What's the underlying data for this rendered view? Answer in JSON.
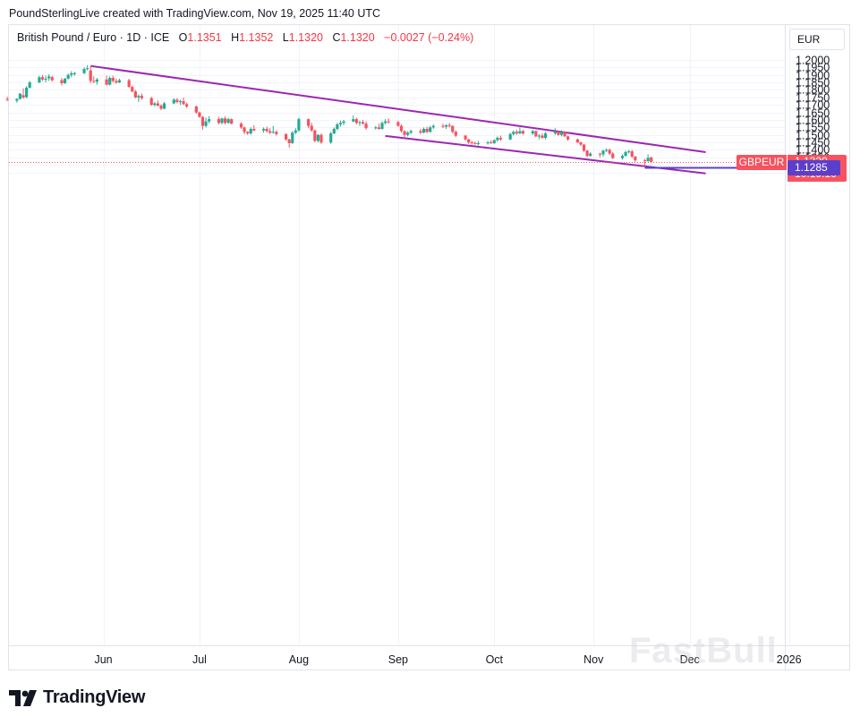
{
  "header": {
    "credit": "PoundSterlingLive created with TradingView.com, Nov 19, 2025 11:40 UTC"
  },
  "legend": {
    "title": "British Pound / Euro · 1D · ICE",
    "o_label": "O",
    "o_value": "1.1351",
    "h_label": "H",
    "h_value": "1.1352",
    "l_label": "L",
    "l_value": "1.1320",
    "c_label": "C",
    "c_value": "1.1320",
    "change": "−0.0027 (−0.24%)"
  },
  "currency_button": "EUR",
  "price_tags": {
    "symbol": "GBPEUR",
    "last": "1.1320",
    "countdown": "10:19:16",
    "level": "1.1285"
  },
  "brand": "TradingView",
  "watermark": "FastBull",
  "colors": {
    "up": "#22ab94",
    "down": "#f7525f",
    "trendline": "#9c27b0",
    "level": "#5b3fcc",
    "grid": "#f0f3fa"
  },
  "chart_data": {
    "type": "candlestick",
    "symbol": "GBPEUR",
    "ylim": [
      1.121,
      1.2045
    ],
    "y_ticks": [
      "1.2000",
      "1.1950",
      "1.1900",
      "1.1850",
      "1.1800",
      "1.1750",
      "1.1700",
      "1.1650",
      "1.1600",
      "1.1550",
      "1.1500",
      "1.1450",
      "1.1400",
      "1.1350",
      "1.1300",
      "1.1250"
    ],
    "x_ticks": [
      "Jun",
      "Jul",
      "Aug",
      "Sep",
      "Oct",
      "Nov",
      "Dec",
      "2026"
    ],
    "last_close": 1.132,
    "horizontal_level": 1.1285,
    "trendlines": [
      {
        "from": [
          "2025-05-28",
          1.196
        ],
        "to": [
          "2025-12-06",
          1.1385
        ]
      },
      {
        "from": [
          "2025-08-28",
          1.1493
        ],
        "to": [
          "2025-12-06",
          1.1243
        ]
      }
    ],
    "candles": [
      {
        "d": "2025-05-02",
        "o": 1.174,
        "h": 1.1755,
        "l": 1.1725,
        "c": 1.1735
      },
      {
        "d": "2025-05-05",
        "o": 1.1728,
        "h": 1.1745,
        "l": 1.1715,
        "c": 1.174
      },
      {
        "d": "2025-05-06",
        "o": 1.174,
        "h": 1.178,
        "l": 1.1735,
        "c": 1.1775
      },
      {
        "d": "2025-05-07",
        "o": 1.1765,
        "h": 1.181,
        "l": 1.174,
        "c": 1.175
      },
      {
        "d": "2025-05-08",
        "o": 1.1752,
        "h": 1.1825,
        "l": 1.1745,
        "c": 1.1815
      },
      {
        "d": "2025-05-09",
        "o": 1.1815,
        "h": 1.186,
        "l": 1.181,
        "c": 1.185
      },
      {
        "d": "2025-05-12",
        "o": 1.185,
        "h": 1.1895,
        "l": 1.1845,
        "c": 1.1885
      },
      {
        "d": "2025-05-13",
        "o": 1.1885,
        "h": 1.19,
        "l": 1.186,
        "c": 1.187
      },
      {
        "d": "2025-05-14",
        "o": 1.1868,
        "h": 1.1895,
        "l": 1.185,
        "c": 1.1875
      },
      {
        "d": "2025-05-15",
        "o": 1.1878,
        "h": 1.1905,
        "l": 1.186,
        "c": 1.189
      },
      {
        "d": "2025-05-16",
        "o": 1.1885,
        "h": 1.1895,
        "l": 1.1855,
        "c": 1.1865
      },
      {
        "d": "2025-05-19",
        "o": 1.1865,
        "h": 1.188,
        "l": 1.183,
        "c": 1.1845
      },
      {
        "d": "2025-05-20",
        "o": 1.1845,
        "h": 1.188,
        "l": 1.184,
        "c": 1.1875
      },
      {
        "d": "2025-05-21",
        "o": 1.1875,
        "h": 1.191,
        "l": 1.187,
        "c": 1.19
      },
      {
        "d": "2025-05-22",
        "o": 1.19,
        "h": 1.1925,
        "l": 1.1885,
        "c": 1.191
      },
      {
        "d": "2025-05-23",
        "o": 1.1905,
        "h": 1.192,
        "l": 1.1895,
        "c": 1.1912
      },
      {
        "d": "2025-05-26",
        "o": 1.1912,
        "h": 1.195,
        "l": 1.1905,
        "c": 1.194
      },
      {
        "d": "2025-05-27",
        "o": 1.194,
        "h": 1.1965,
        "l": 1.193,
        "c": 1.1945
      },
      {
        "d": "2025-05-28",
        "o": 1.193,
        "h": 1.1958,
        "l": 1.1845,
        "c": 1.186
      },
      {
        "d": "2025-05-29",
        "o": 1.186,
        "h": 1.189,
        "l": 1.1845,
        "c": 1.1855
      },
      {
        "d": "2025-05-30",
        "o": 1.1855,
        "h": 1.188,
        "l": 1.1835,
        "c": 1.187
      },
      {
        "d": "2025-06-02",
        "o": 1.187,
        "h": 1.1895,
        "l": 1.183,
        "c": 1.1835
      },
      {
        "d": "2025-06-03",
        "o": 1.1835,
        "h": 1.189,
        "l": 1.183,
        "c": 1.188
      },
      {
        "d": "2025-06-04",
        "o": 1.188,
        "h": 1.1895,
        "l": 1.185,
        "c": 1.186
      },
      {
        "d": "2025-06-05",
        "o": 1.186,
        "h": 1.1875,
        "l": 1.184,
        "c": 1.185
      },
      {
        "d": "2025-06-06",
        "o": 1.185,
        "h": 1.1875,
        "l": 1.1845,
        "c": 1.1865
      },
      {
        "d": "2025-06-09",
        "o": 1.1865,
        "h": 1.1875,
        "l": 1.1815,
        "c": 1.182
      },
      {
        "d": "2025-06-10",
        "o": 1.182,
        "h": 1.183,
        "l": 1.1785,
        "c": 1.179
      },
      {
        "d": "2025-06-11",
        "o": 1.179,
        "h": 1.18,
        "l": 1.1745,
        "c": 1.175
      },
      {
        "d": "2025-06-12",
        "o": 1.175,
        "h": 1.177,
        "l": 1.172,
        "c": 1.176
      },
      {
        "d": "2025-06-13",
        "o": 1.176,
        "h": 1.1775,
        "l": 1.1735,
        "c": 1.1745
      },
      {
        "d": "2025-06-16",
        "o": 1.1745,
        "h": 1.1755,
        "l": 1.1695,
        "c": 1.17
      },
      {
        "d": "2025-06-17",
        "o": 1.17,
        "h": 1.172,
        "l": 1.169,
        "c": 1.171
      },
      {
        "d": "2025-06-18",
        "o": 1.171,
        "h": 1.173,
        "l": 1.169,
        "c": 1.1695
      },
      {
        "d": "2025-06-19",
        "o": 1.1695,
        "h": 1.1705,
        "l": 1.1665,
        "c": 1.1675
      },
      {
        "d": "2025-06-20",
        "o": 1.1675,
        "h": 1.172,
        "l": 1.167,
        "c": 1.171
      },
      {
        "d": "2025-06-23",
        "o": 1.171,
        "h": 1.1745,
        "l": 1.1705,
        "c": 1.1735
      },
      {
        "d": "2025-06-24",
        "o": 1.1735,
        "h": 1.1745,
        "l": 1.171,
        "c": 1.172
      },
      {
        "d": "2025-06-25",
        "o": 1.172,
        "h": 1.1735,
        "l": 1.17,
        "c": 1.1725
      },
      {
        "d": "2025-06-26",
        "o": 1.1725,
        "h": 1.175,
        "l": 1.17,
        "c": 1.1705
      },
      {
        "d": "2025-06-27",
        "o": 1.1705,
        "h": 1.1715,
        "l": 1.168,
        "c": 1.169
      },
      {
        "d": "2025-06-30",
        "o": 1.169,
        "h": 1.1695,
        "l": 1.164,
        "c": 1.165
      },
      {
        "d": "2025-07-01",
        "o": 1.165,
        "h": 1.1655,
        "l": 1.1615,
        "c": 1.162
      },
      {
        "d": "2025-07-02",
        "o": 1.162,
        "h": 1.1625,
        "l": 1.1535,
        "c": 1.156
      },
      {
        "d": "2025-07-03",
        "o": 1.156,
        "h": 1.1615,
        "l": 1.155,
        "c": 1.159
      },
      {
        "d": "2025-07-04",
        "o": 1.159,
        "h": 1.1625,
        "l": 1.1575,
        "c": 1.1605
      },
      {
        "d": "2025-07-07",
        "o": 1.1605,
        "h": 1.162,
        "l": 1.157,
        "c": 1.158
      },
      {
        "d": "2025-07-08",
        "o": 1.158,
        "h": 1.1615,
        "l": 1.157,
        "c": 1.161
      },
      {
        "d": "2025-07-09",
        "o": 1.161,
        "h": 1.1625,
        "l": 1.157,
        "c": 1.158
      },
      {
        "d": "2025-07-10",
        "o": 1.158,
        "h": 1.1615,
        "l": 1.1575,
        "c": 1.1605
      },
      {
        "d": "2025-07-11",
        "o": 1.1605,
        "h": 1.161,
        "l": 1.157,
        "c": 1.1575
      },
      {
        "d": "2025-07-14",
        "o": 1.1575,
        "h": 1.1585,
        "l": 1.154,
        "c": 1.155
      },
      {
        "d": "2025-07-15",
        "o": 1.155,
        "h": 1.1555,
        "l": 1.1505,
        "c": 1.152
      },
      {
        "d": "2025-07-16",
        "o": 1.152,
        "h": 1.1525,
        "l": 1.15,
        "c": 1.151
      },
      {
        "d": "2025-07-17",
        "o": 1.151,
        "h": 1.155,
        "l": 1.15,
        "c": 1.154
      },
      {
        "d": "2025-07-18",
        "o": 1.154,
        "h": 1.1565,
        "l": 1.1525,
        "c": 1.153
      },
      {
        "d": "2025-07-21",
        "o": 1.153,
        "h": 1.155,
        "l": 1.1515,
        "c": 1.154
      },
      {
        "d": "2025-07-22",
        "o": 1.154,
        "h": 1.1555,
        "l": 1.1515,
        "c": 1.1525
      },
      {
        "d": "2025-07-23",
        "o": 1.1525,
        "h": 1.1545,
        "l": 1.1505,
        "c": 1.1515
      },
      {
        "d": "2025-07-24",
        "o": 1.1515,
        "h": 1.156,
        "l": 1.151,
        "c": 1.152
      },
      {
        "d": "2025-07-25",
        "o": 1.152,
        "h": 1.153,
        "l": 1.1495,
        "c": 1.1505
      },
      {
        "d": "2025-07-28",
        "o": 1.1505,
        "h": 1.151,
        "l": 1.146,
        "c": 1.147
      },
      {
        "d": "2025-07-29",
        "o": 1.147,
        "h": 1.1475,
        "l": 1.1415,
        "c": 1.1445
      },
      {
        "d": "2025-07-30",
        "o": 1.1445,
        "h": 1.1525,
        "l": 1.144,
        "c": 1.1515
      },
      {
        "d": "2025-07-31",
        "o": 1.1515,
        "h": 1.1545,
        "l": 1.1505,
        "c": 1.153
      },
      {
        "d": "2025-08-01",
        "o": 1.153,
        "h": 1.1615,
        "l": 1.152,
        "c": 1.1605
      },
      {
        "d": "2025-08-04",
        "o": 1.1605,
        "h": 1.161,
        "l": 1.1545,
        "c": 1.156
      },
      {
        "d": "2025-08-05",
        "o": 1.156,
        "h": 1.158,
        "l": 1.152,
        "c": 1.153
      },
      {
        "d": "2025-08-06",
        "o": 1.153,
        "h": 1.1535,
        "l": 1.145,
        "c": 1.146
      },
      {
        "d": "2025-08-07",
        "o": 1.146,
        "h": 1.1505,
        "l": 1.145,
        "c": 1.15
      },
      {
        "d": "2025-08-08",
        "o": 1.15,
        "h": 1.151,
        "l": 1.144,
        "c": 1.145
      },
      {
        "d": "2025-08-11",
        "o": 1.145,
        "h": 1.152,
        "l": 1.144,
        "c": 1.151
      },
      {
        "d": "2025-08-12",
        "o": 1.151,
        "h": 1.155,
        "l": 1.1505,
        "c": 1.154
      },
      {
        "d": "2025-08-13",
        "o": 1.154,
        "h": 1.158,
        "l": 1.153,
        "c": 1.157
      },
      {
        "d": "2025-08-14",
        "o": 1.157,
        "h": 1.1595,
        "l": 1.1555,
        "c": 1.158
      },
      {
        "d": "2025-08-15",
        "o": 1.158,
        "h": 1.16,
        "l": 1.1565,
        "c": 1.159
      },
      {
        "d": "2025-08-18",
        "o": 1.159,
        "h": 1.163,
        "l": 1.1585,
        "c": 1.1605
      },
      {
        "d": "2025-08-19",
        "o": 1.1605,
        "h": 1.1615,
        "l": 1.157,
        "c": 1.158
      },
      {
        "d": "2025-08-20",
        "o": 1.158,
        "h": 1.1595,
        "l": 1.156,
        "c": 1.1585
      },
      {
        "d": "2025-08-21",
        "o": 1.1585,
        "h": 1.16,
        "l": 1.157,
        "c": 1.1575
      },
      {
        "d": "2025-08-22",
        "o": 1.1575,
        "h": 1.159,
        "l": 1.1535,
        "c": 1.1545
      },
      {
        "d": "2025-08-25",
        "o": 1.1545,
        "h": 1.156,
        "l": 1.1535,
        "c": 1.155
      },
      {
        "d": "2025-08-26",
        "o": 1.155,
        "h": 1.1575,
        "l": 1.1535,
        "c": 1.154
      },
      {
        "d": "2025-08-27",
        "o": 1.154,
        "h": 1.159,
        "l": 1.1535,
        "c": 1.158
      },
      {
        "d": "2025-08-28",
        "o": 1.158,
        "h": 1.1605,
        "l": 1.157,
        "c": 1.159
      },
      {
        "d": "2025-08-29",
        "o": 1.159,
        "h": 1.161,
        "l": 1.1575,
        "c": 1.1585
      },
      {
        "d": "2025-09-01",
        "o": 1.1585,
        "h": 1.1595,
        "l": 1.1555,
        "c": 1.156
      },
      {
        "d": "2025-09-02",
        "o": 1.156,
        "h": 1.157,
        "l": 1.1515,
        "c": 1.1525
      },
      {
        "d": "2025-09-03",
        "o": 1.1525,
        "h": 1.153,
        "l": 1.148,
        "c": 1.15
      },
      {
        "d": "2025-09-04",
        "o": 1.15,
        "h": 1.1525,
        "l": 1.149,
        "c": 1.1515
      },
      {
        "d": "2025-09-05",
        "o": 1.1515,
        "h": 1.1535,
        "l": 1.1505,
        "c": 1.1525
      },
      {
        "d": "2025-09-08",
        "o": 1.1525,
        "h": 1.154,
        "l": 1.1505,
        "c": 1.1515
      },
      {
        "d": "2025-09-09",
        "o": 1.1515,
        "h": 1.155,
        "l": 1.151,
        "c": 1.154
      },
      {
        "d": "2025-09-10",
        "o": 1.154,
        "h": 1.1555,
        "l": 1.151,
        "c": 1.152
      },
      {
        "d": "2025-09-11",
        "o": 1.152,
        "h": 1.156,
        "l": 1.1515,
        "c": 1.155
      },
      {
        "d": "2025-09-12",
        "o": 1.155,
        "h": 1.157,
        "l": 1.154,
        "c": 1.156
      },
      {
        "d": "2025-09-15",
        "o": 1.156,
        "h": 1.1575,
        "l": 1.1545,
        "c": 1.1555
      },
      {
        "d": "2025-09-16",
        "o": 1.1555,
        "h": 1.157,
        "l": 1.154,
        "c": 1.1565
      },
      {
        "d": "2025-09-17",
        "o": 1.1565,
        "h": 1.158,
        "l": 1.155,
        "c": 1.156
      },
      {
        "d": "2025-09-18",
        "o": 1.156,
        "h": 1.1565,
        "l": 1.151,
        "c": 1.152
      },
      {
        "d": "2025-09-19",
        "o": 1.152,
        "h": 1.153,
        "l": 1.1485,
        "c": 1.1495
      },
      {
        "d": "2025-09-22",
        "o": 1.1495,
        "h": 1.15,
        "l": 1.146,
        "c": 1.147
      },
      {
        "d": "2025-09-23",
        "o": 1.147,
        "h": 1.1475,
        "l": 1.144,
        "c": 1.145
      },
      {
        "d": "2025-09-24",
        "o": 1.145,
        "h": 1.146,
        "l": 1.1435,
        "c": 1.1445
      },
      {
        "d": "2025-09-25",
        "o": 1.1445,
        "h": 1.1455,
        "l": 1.1435,
        "c": 1.144
      },
      {
        "d": "2025-09-26",
        "o": 1.144,
        "h": 1.146,
        "l": 1.143,
        "c": 1.1445
      },
      {
        "d": "2025-09-29",
        "o": 1.1445,
        "h": 1.146,
        "l": 1.1435,
        "c": 1.145
      },
      {
        "d": "2025-09-30",
        "o": 1.145,
        "h": 1.1465,
        "l": 1.144,
        "c": 1.1445
      },
      {
        "d": "2025-10-01",
        "o": 1.1445,
        "h": 1.147,
        "l": 1.144,
        "c": 1.1465
      },
      {
        "d": "2025-10-02",
        "o": 1.1465,
        "h": 1.149,
        "l": 1.1455,
        "c": 1.148
      },
      {
        "d": "2025-10-03",
        "o": 1.148,
        "h": 1.1495,
        "l": 1.146,
        "c": 1.147
      },
      {
        "d": "2025-10-06",
        "o": 1.147,
        "h": 1.1515,
        "l": 1.1465,
        "c": 1.1505
      },
      {
        "d": "2025-10-07",
        "o": 1.1505,
        "h": 1.153,
        "l": 1.1495,
        "c": 1.152
      },
      {
        "d": "2025-10-08",
        "o": 1.152,
        "h": 1.1535,
        "l": 1.15,
        "c": 1.151
      },
      {
        "d": "2025-10-09",
        "o": 1.151,
        "h": 1.155,
        "l": 1.1505,
        "c": 1.1525
      },
      {
        "d": "2025-10-10",
        "o": 1.1525,
        "h": 1.1535,
        "l": 1.15,
        "c": 1.151
      },
      {
        "d": "2025-10-13",
        "o": 1.151,
        "h": 1.1535,
        "l": 1.15,
        "c": 1.1525
      },
      {
        "d": "2025-10-14",
        "o": 1.1525,
        "h": 1.153,
        "l": 1.1485,
        "c": 1.149
      },
      {
        "d": "2025-10-15",
        "o": 1.149,
        "h": 1.1505,
        "l": 1.147,
        "c": 1.1495
      },
      {
        "d": "2025-10-16",
        "o": 1.1495,
        "h": 1.151,
        "l": 1.1475,
        "c": 1.148
      },
      {
        "d": "2025-10-17",
        "o": 1.148,
        "h": 1.152,
        "l": 1.147,
        "c": 1.151
      },
      {
        "d": "2025-10-20",
        "o": 1.151,
        "h": 1.1545,
        "l": 1.15,
        "c": 1.152
      },
      {
        "d": "2025-10-21",
        "o": 1.152,
        "h": 1.1525,
        "l": 1.1495,
        "c": 1.15
      },
      {
        "d": "2025-10-22",
        "o": 1.15,
        "h": 1.153,
        "l": 1.149,
        "c": 1.152
      },
      {
        "d": "2025-10-23",
        "o": 1.152,
        "h": 1.1525,
        "l": 1.1485,
        "c": 1.149
      },
      {
        "d": "2025-10-24",
        "o": 1.149,
        "h": 1.1495,
        "l": 1.146,
        "c": 1.147
      },
      {
        "d": "2025-10-27",
        "o": 1.147,
        "h": 1.1475,
        "l": 1.1445,
        "c": 1.145
      },
      {
        "d": "2025-10-28",
        "o": 1.145,
        "h": 1.1455,
        "l": 1.1425,
        "c": 1.1435
      },
      {
        "d": "2025-10-29",
        "o": 1.1435,
        "h": 1.144,
        "l": 1.1385,
        "c": 1.1395
      },
      {
        "d": "2025-10-30",
        "o": 1.1395,
        "h": 1.14,
        "l": 1.135,
        "c": 1.136
      },
      {
        "d": "2025-10-31",
        "o": 1.136,
        "h": 1.1385,
        "l": 1.1355,
        "c": 1.1375
      },
      {
        "d": "2025-11-03",
        "o": 1.1375,
        "h": 1.138,
        "l": 1.135,
        "c": 1.137
      },
      {
        "d": "2025-11-04",
        "o": 1.137,
        "h": 1.14,
        "l": 1.1355,
        "c": 1.1395
      },
      {
        "d": "2025-11-05",
        "o": 1.1395,
        "h": 1.141,
        "l": 1.1385,
        "c": 1.14
      },
      {
        "d": "2025-11-06",
        "o": 1.14,
        "h": 1.141,
        "l": 1.1365,
        "c": 1.1375
      },
      {
        "d": "2025-11-07",
        "o": 1.1375,
        "h": 1.1385,
        "l": 1.134,
        "c": 1.1345
      },
      {
        "d": "2025-11-10",
        "o": 1.1345,
        "h": 1.137,
        "l": 1.1335,
        "c": 1.136
      },
      {
        "d": "2025-11-11",
        "o": 1.136,
        "h": 1.1395,
        "l": 1.1355,
        "c": 1.1385
      },
      {
        "d": "2025-11-12",
        "o": 1.1385,
        "h": 1.14,
        "l": 1.1375,
        "c": 1.139
      },
      {
        "d": "2025-11-13",
        "o": 1.139,
        "h": 1.14,
        "l": 1.1345,
        "c": 1.1355
      },
      {
        "d": "2025-11-14",
        "o": 1.1355,
        "h": 1.136,
        "l": 1.132,
        "c": 1.133
      },
      {
        "d": "2025-11-17",
        "o": 1.133,
        "h": 1.134,
        "l": 1.1285,
        "c": 1.1325
      },
      {
        "d": "2025-11-18",
        "o": 1.1325,
        "h": 1.137,
        "l": 1.132,
        "c": 1.1347
      },
      {
        "d": "2025-11-19",
        "o": 1.1351,
        "h": 1.1352,
        "l": 1.132,
        "c": 1.132
      }
    ]
  }
}
